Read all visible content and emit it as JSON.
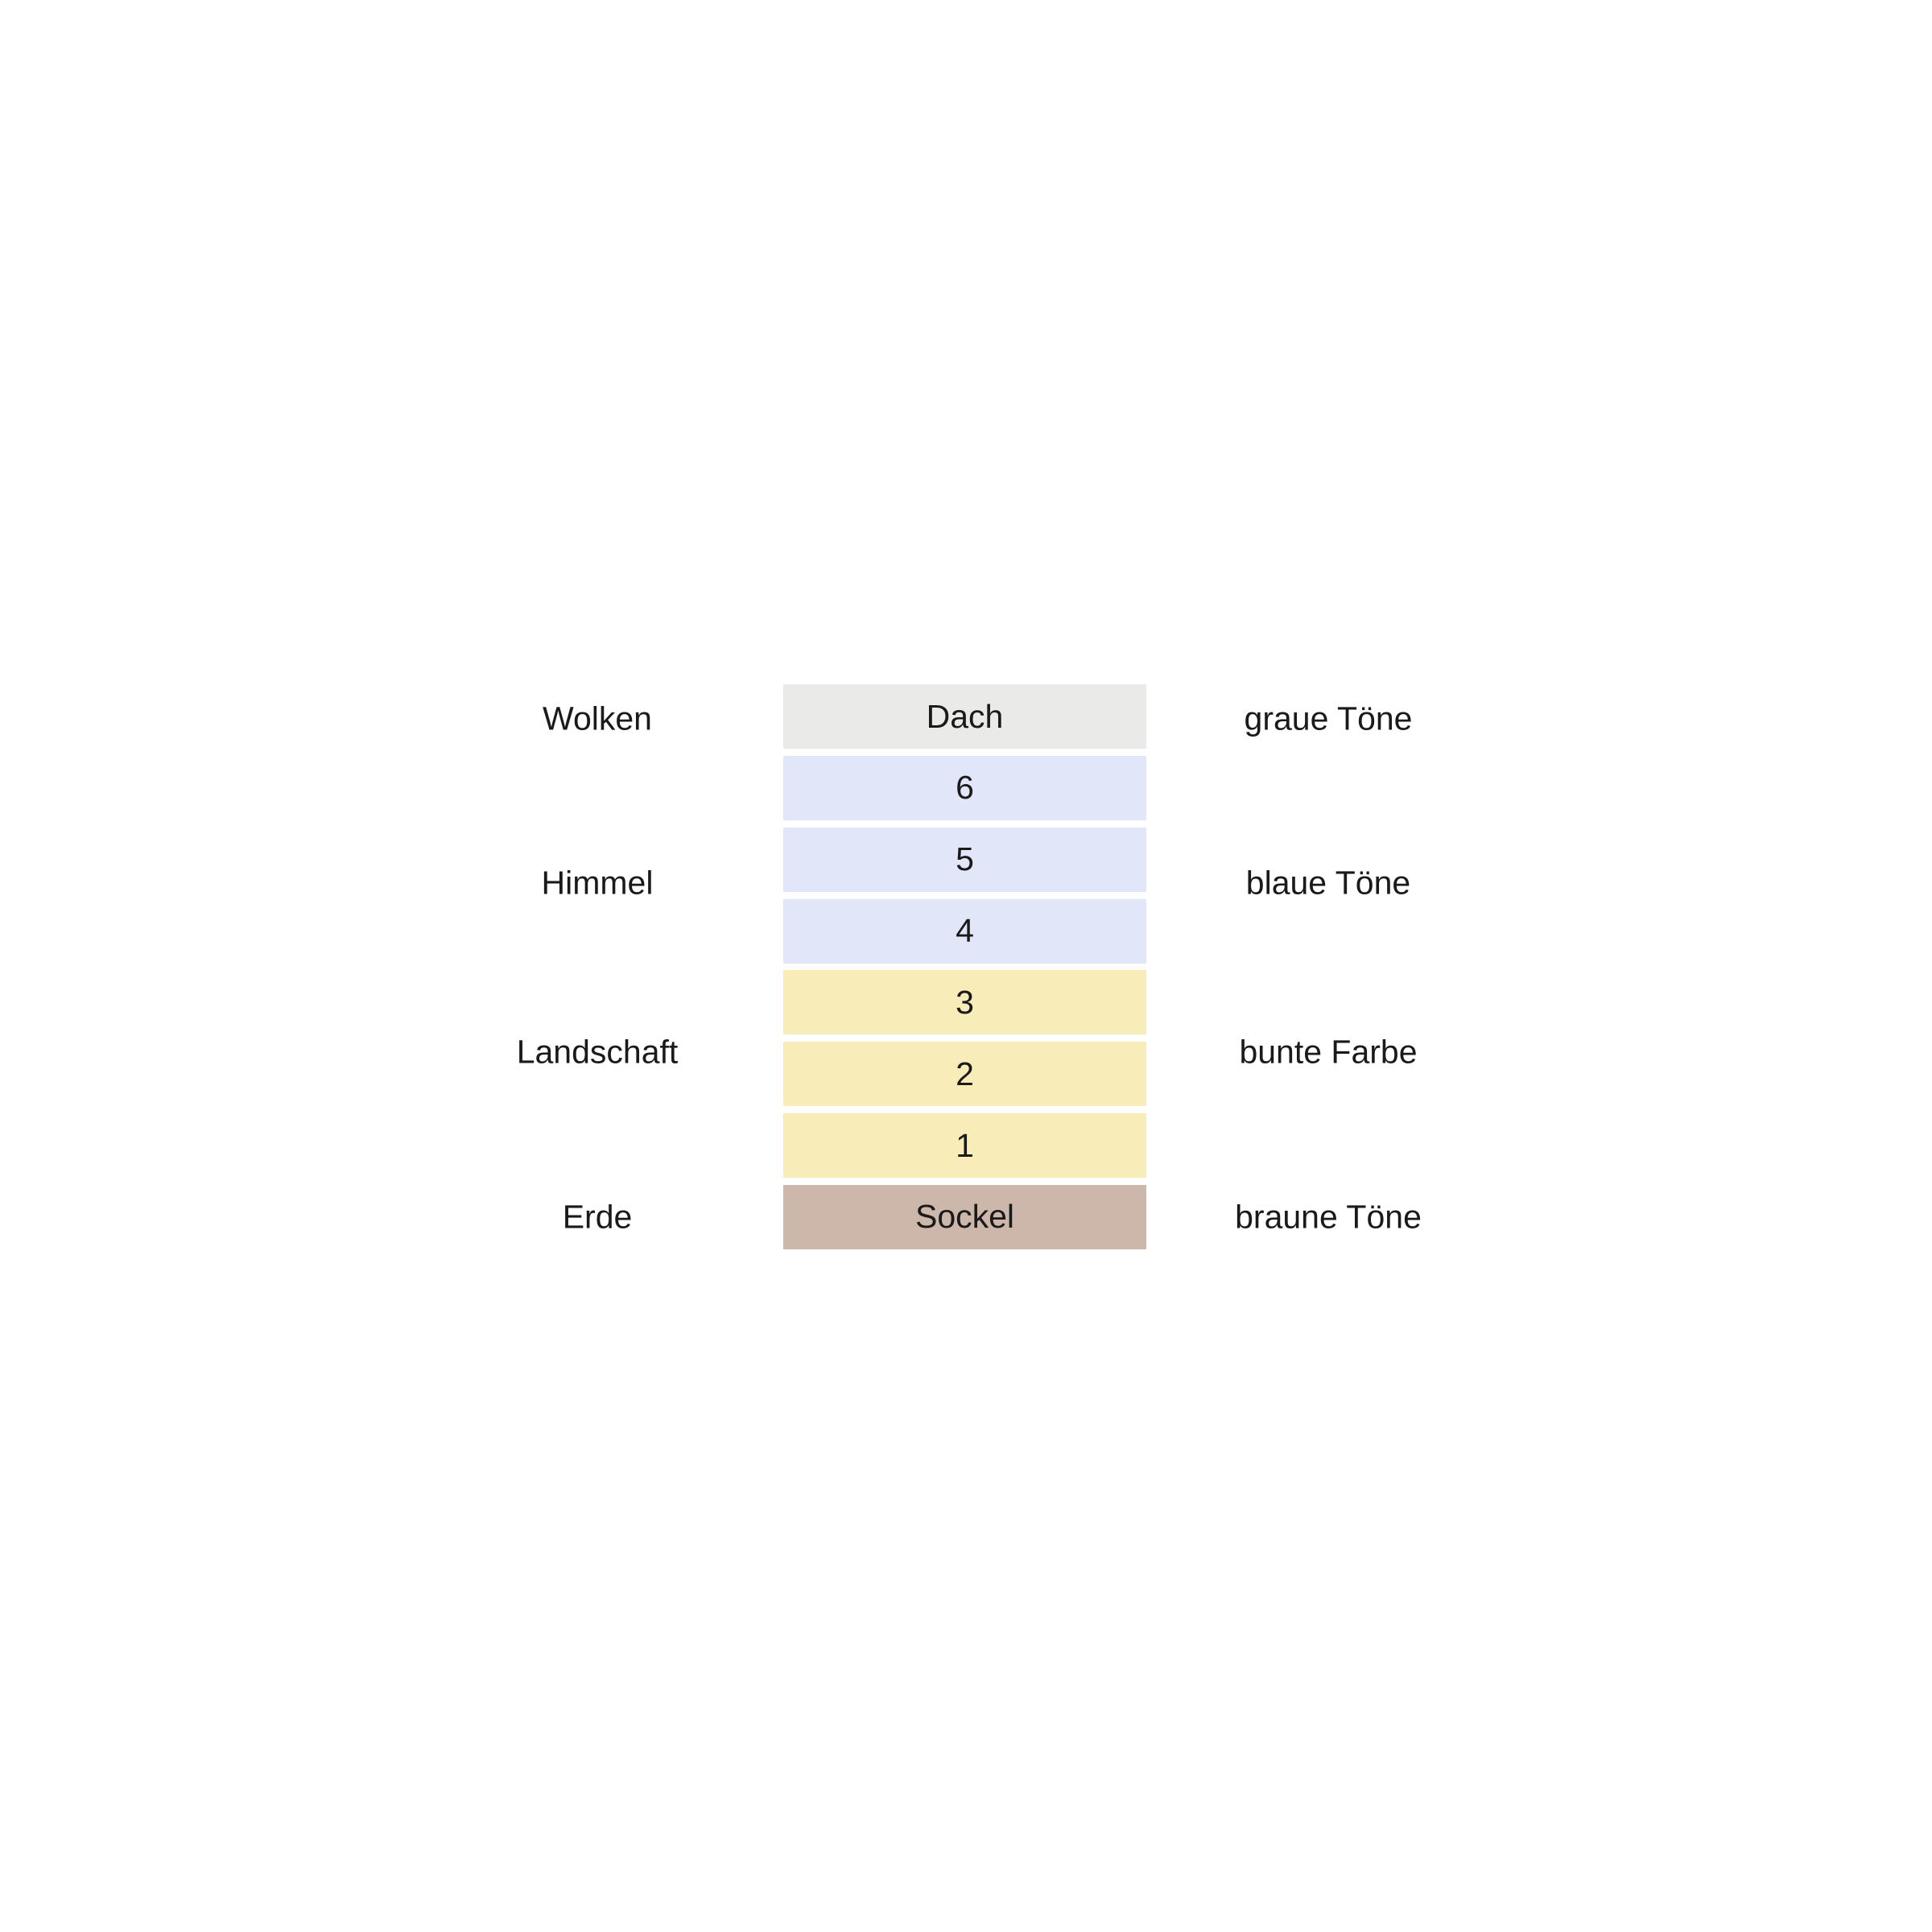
{
  "page": {
    "background": "#ffffff",
    "text_color": "#1a1a1a"
  },
  "diagram": {
    "description_rows": [
      {
        "left": "Wolken",
        "right": "graue Töne"
      },
      {
        "left": "Himmel",
        "right": "blaue Töne"
      },
      {
        "left": "Landschaft",
        "right": "bunte Farbe"
      },
      {
        "left": "Erde",
        "right": "braune Töne"
      }
    ],
    "bars": [
      {
        "label": "Dach",
        "color": "#eaeae8"
      },
      {
        "label": "6",
        "color": "#e2e6f9"
      },
      {
        "label": "5",
        "color": "#e2e6f9"
      },
      {
        "label": "4",
        "color": "#e2e6f9"
      },
      {
        "label": "3",
        "color": "#f8edb8"
      },
      {
        "label": "2",
        "color": "#f8edb8"
      },
      {
        "label": "1",
        "color": "#f8edb8"
      },
      {
        "label": "Sockel",
        "color": "#ccb7aa"
      }
    ]
  }
}
